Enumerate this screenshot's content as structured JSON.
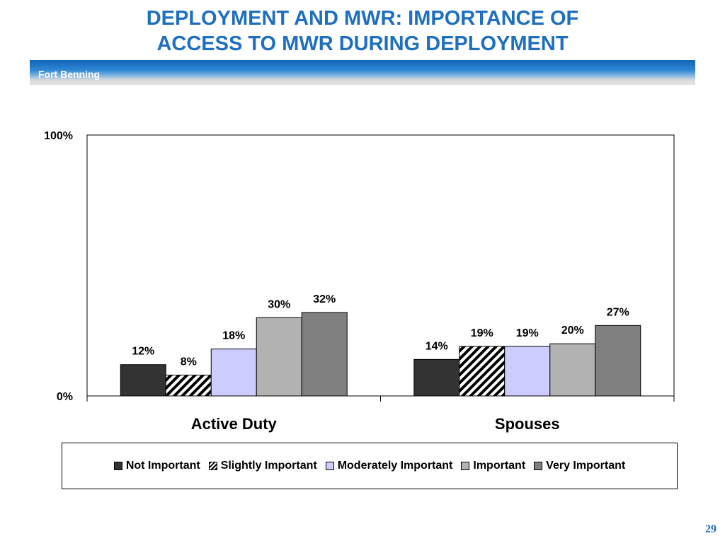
{
  "slide": {
    "title_line1": "DEPLOYMENT AND MWR: IMPORTANCE OF",
    "title_line2": "ACCESS TO MWR DURING DEPLOYMENT",
    "subtitle": "Fort Benning",
    "page_number": "29"
  },
  "chart_data": {
    "type": "bar",
    "categories": [
      "Active Duty",
      "Spouses"
    ],
    "series": [
      {
        "name": "Not Important",
        "values": [
          12,
          14
        ],
        "labels": [
          "12%",
          "14%"
        ],
        "color": "#333333",
        "pattern": "solid"
      },
      {
        "name": "Slightly Important",
        "values": [
          8,
          19
        ],
        "labels": [
          "8%",
          "19%"
        ],
        "color": "#000000",
        "pattern": "hatch"
      },
      {
        "name": "Moderately Important",
        "values": [
          18,
          19
        ],
        "labels": [
          "18%",
          "19%"
        ],
        "color": "#ccccff",
        "pattern": "solid"
      },
      {
        "name": "Important",
        "values": [
          30,
          20
        ],
        "labels": [
          "30%",
          "20%"
        ],
        "color": "#b2b2b2",
        "pattern": "solid"
      },
      {
        "name": "Very Important",
        "values": [
          32,
          27
        ],
        "labels": [
          "32%",
          "27%"
        ],
        "color": "#808080",
        "pattern": "solid"
      }
    ],
    "y_ticks": [
      "0%",
      "100%"
    ],
    "ylim": [
      0,
      100
    ],
    "grid": false,
    "legend_position": "bottom"
  }
}
